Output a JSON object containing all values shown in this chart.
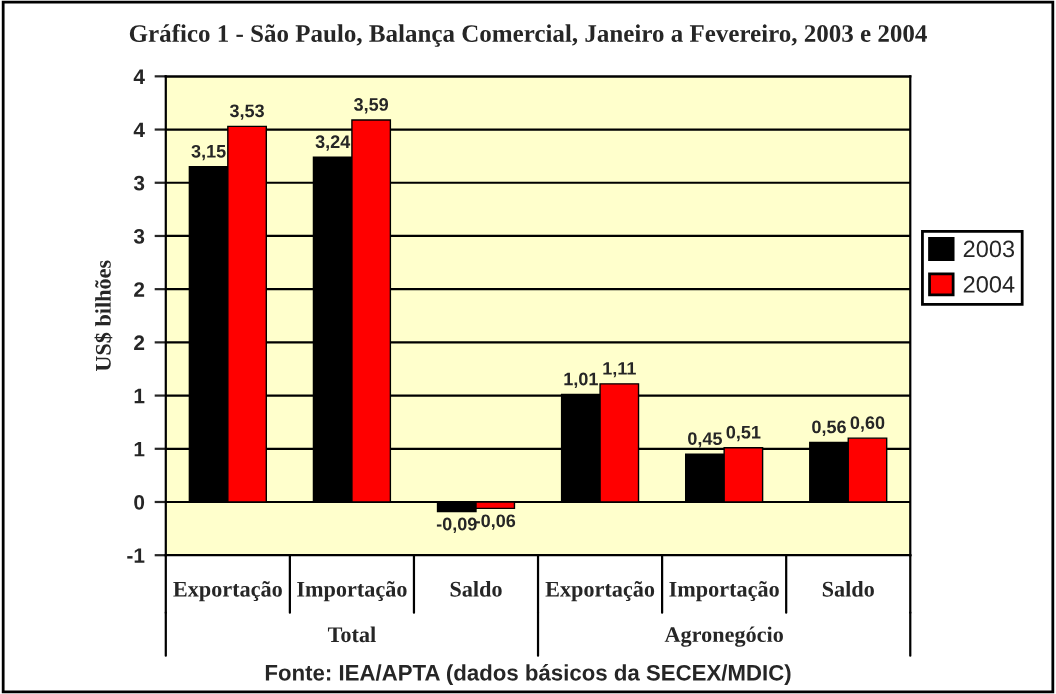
{
  "chart_data": {
    "type": "bar",
    "title": "Gráfico 1 - São Paulo, Balança Comercial, Janeiro a Fevereiro, 2003 e 2004",
    "ylabel": "US$ bilhões",
    "categories": [
      "Exportação",
      "Importação",
      "Saldo",
      "Exportação",
      "Importação",
      "Saldo"
    ],
    "series": [
      {
        "name": "2003",
        "color": "#000000",
        "values": [
          3.15,
          3.24,
          -0.09,
          1.01,
          0.45,
          0.56
        ],
        "value_labels": [
          "3,15",
          "3,24",
          "-0,09",
          "1,01",
          "0,45",
          "0,56"
        ]
      },
      {
        "name": "2004",
        "color": "#ff0000",
        "values": [
          3.53,
          3.59,
          -0.06,
          1.11,
          0.51,
          0.6
        ],
        "value_labels": [
          "3,53",
          "3,59",
          "-0,06",
          "1,11",
          "0,51",
          "0,60"
        ]
      }
    ],
    "ylim": [
      -0.5,
      4.0
    ],
    "yticks": [
      {
        "value": -0.5,
        "label": "-1"
      },
      0,
      {
        "value": 0.5,
        "label": "1"
      },
      1,
      {
        "value": 1.5,
        "label": "2"
      },
      2,
      {
        "value": 2.5,
        "label": "3"
      },
      3,
      {
        "value": 3.5,
        "label": "4"
      },
      4
    ],
    "grid": "y",
    "legend": "right",
    "annotations": [
      "Total",
      "Agronegócio",
      "Fonte: IEA/APTA (dados básicos da SECEX/MDIC)"
    ]
  }
}
